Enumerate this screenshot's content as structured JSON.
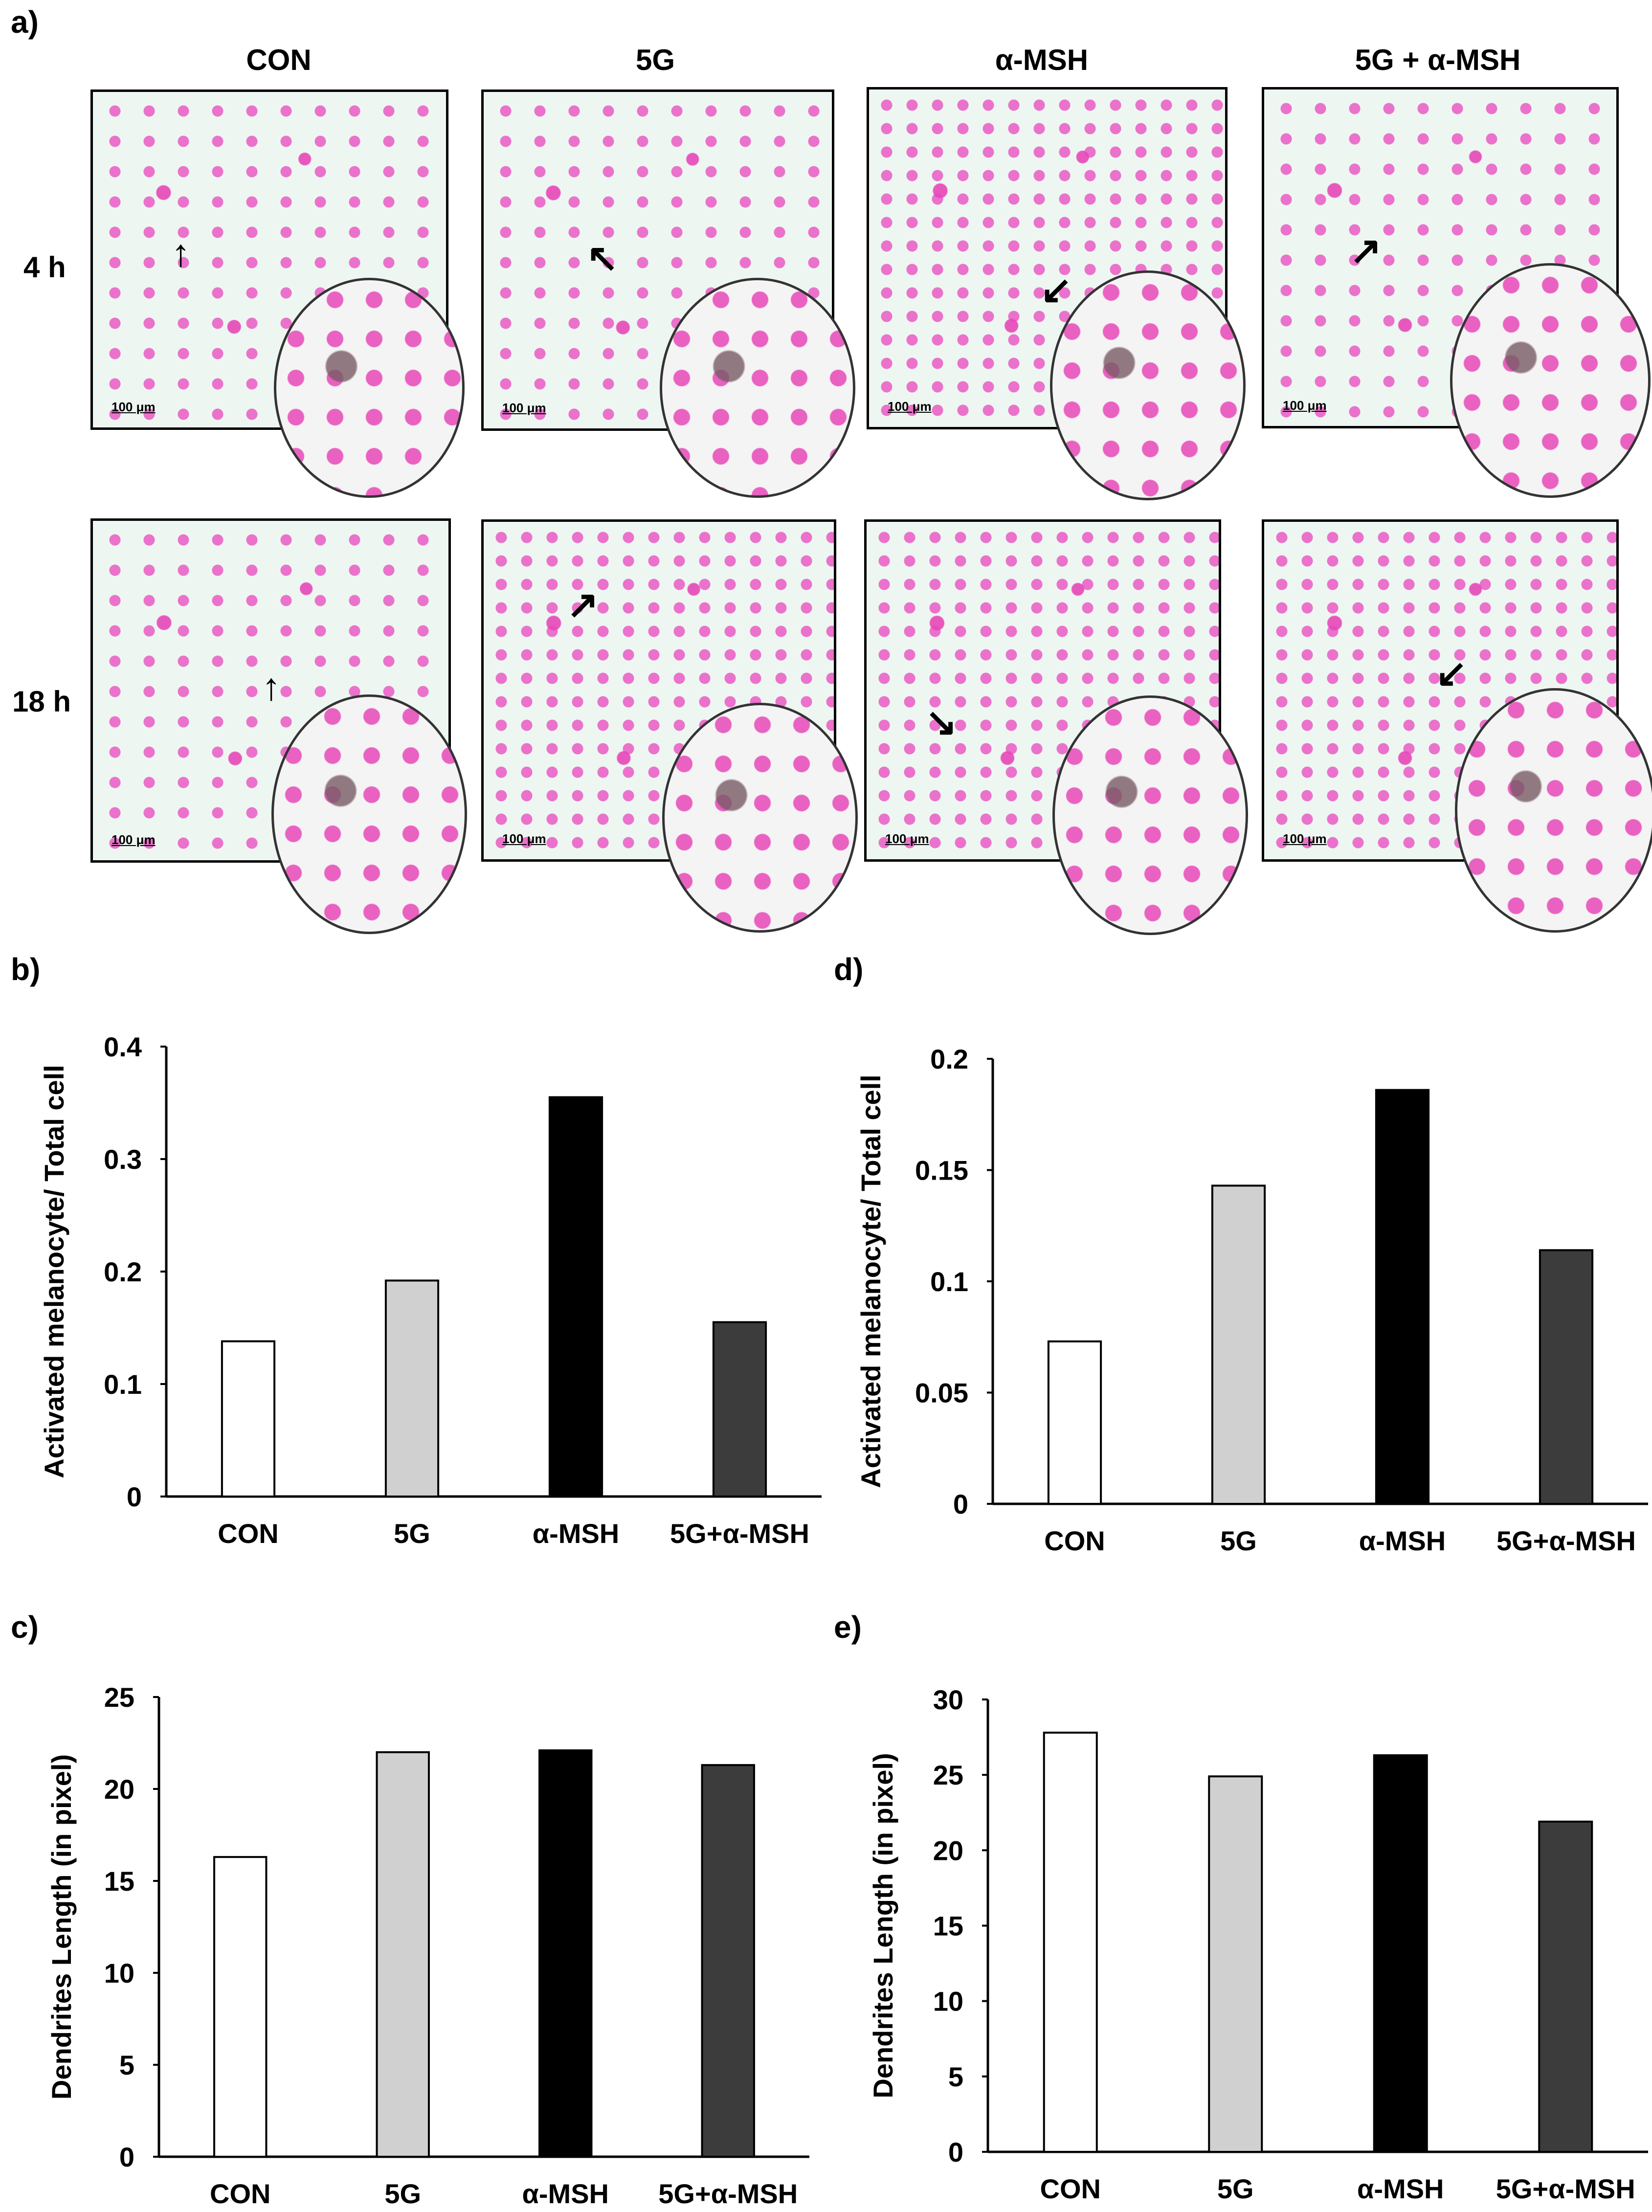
{
  "figure": {
    "panel_labels": {
      "a": "a)",
      "b": "b)",
      "c": "c)",
      "d": "d)",
      "e": "e)"
    },
    "columns": [
      "CON",
      "5G",
      "α-MSH",
      "5G + α-MSH"
    ],
    "rows": [
      "4 h",
      "18 h"
    ],
    "scale_bar": "100 μm"
  },
  "chart_data": [
    {
      "id": "b",
      "type": "bar",
      "title": "",
      "ylabel": "Activated melanocyte/ Total cell",
      "xlabel": "",
      "categories": [
        "CON",
        "5G",
        "α-MSH",
        "5G+α-MSH"
      ],
      "values": [
        0.138,
        0.192,
        0.355,
        0.155
      ],
      "ylim": [
        0,
        0.4
      ],
      "yticks": [
        0,
        0.1,
        0.2,
        0.3,
        0.4
      ],
      "ytick_labels": [
        "0",
        "0.1",
        "0.2",
        "0.3",
        "0.4"
      ],
      "colors": [
        "#ffffff",
        "#d0d0d0",
        "#000000",
        "#3c3c3c"
      ]
    },
    {
      "id": "c",
      "type": "bar",
      "title": "",
      "ylabel": "Dendrites Length (in pixel)",
      "xlabel": "",
      "categories": [
        "CON",
        "5G",
        "α-MSH",
        "5G+α-MSH"
      ],
      "values": [
        16.3,
        22.0,
        22.1,
        21.3
      ],
      "ylim": [
        0,
        25
      ],
      "yticks": [
        0,
        5,
        10,
        15,
        20,
        25
      ],
      "ytick_labels": [
        "0",
        "5",
        "10",
        "15",
        "20",
        "25"
      ],
      "colors": [
        "#ffffff",
        "#d0d0d0",
        "#000000",
        "#3c3c3c"
      ]
    },
    {
      "id": "d",
      "type": "bar",
      "title": "",
      "ylabel": "Activated melanocyte/ Total cell",
      "xlabel": "",
      "categories": [
        "CON",
        "5G",
        "α-MSH",
        "5G+α-MSH"
      ],
      "values": [
        0.073,
        0.143,
        0.186,
        0.114
      ],
      "ylim": [
        0,
        0.2
      ],
      "yticks": [
        0,
        0.05,
        0.1,
        0.15,
        0.2
      ],
      "ytick_labels": [
        "0",
        "0.05",
        "0.1",
        "0.15",
        "0.2"
      ],
      "colors": [
        "#ffffff",
        "#d0d0d0",
        "#000000",
        "#3c3c3c"
      ]
    },
    {
      "id": "e",
      "type": "bar",
      "title": "",
      "ylabel": "Dendrites Length (in pixel)",
      "xlabel": "",
      "categories": [
        "CON",
        "5G",
        "α-MSH",
        "5G+α-MSH"
      ],
      "values": [
        27.8,
        24.9,
        26.3,
        21.9
      ],
      "ylim": [
        0,
        30
      ],
      "yticks": [
        0,
        5,
        10,
        15,
        20,
        25,
        30
      ],
      "ytick_labels": [
        "0",
        "5",
        "10",
        "15",
        "20",
        "25",
        "30"
      ],
      "colors": [
        "#ffffff",
        "#d0d0d0",
        "#000000",
        "#3c3c3c"
      ]
    }
  ]
}
